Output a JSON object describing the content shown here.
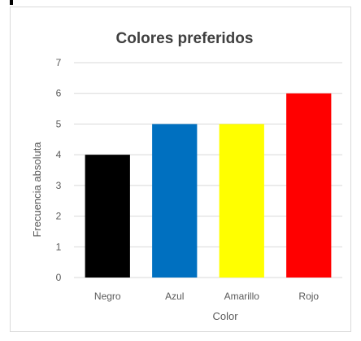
{
  "chart_data": {
    "type": "bar",
    "title": "Colores preferidos",
    "xlabel": "Color",
    "ylabel": "Frecuencia absoluta",
    "categories": [
      "Negro",
      "Azul",
      "Amarillo",
      "Rojo"
    ],
    "values": [
      4,
      5,
      5,
      6
    ],
    "bar_colors": [
      "#000000",
      "#0070c0",
      "#ffff00",
      "#ff0000"
    ],
    "ylim": [
      0,
      7
    ],
    "yticks": [
      "0",
      "1",
      "2",
      "3",
      "4",
      "5",
      "6",
      "7"
    ],
    "grid": true,
    "legend": "none"
  },
  "colors": {
    "gridline": "#d9d9d9",
    "text": "#595959",
    "title": "#404040"
  }
}
